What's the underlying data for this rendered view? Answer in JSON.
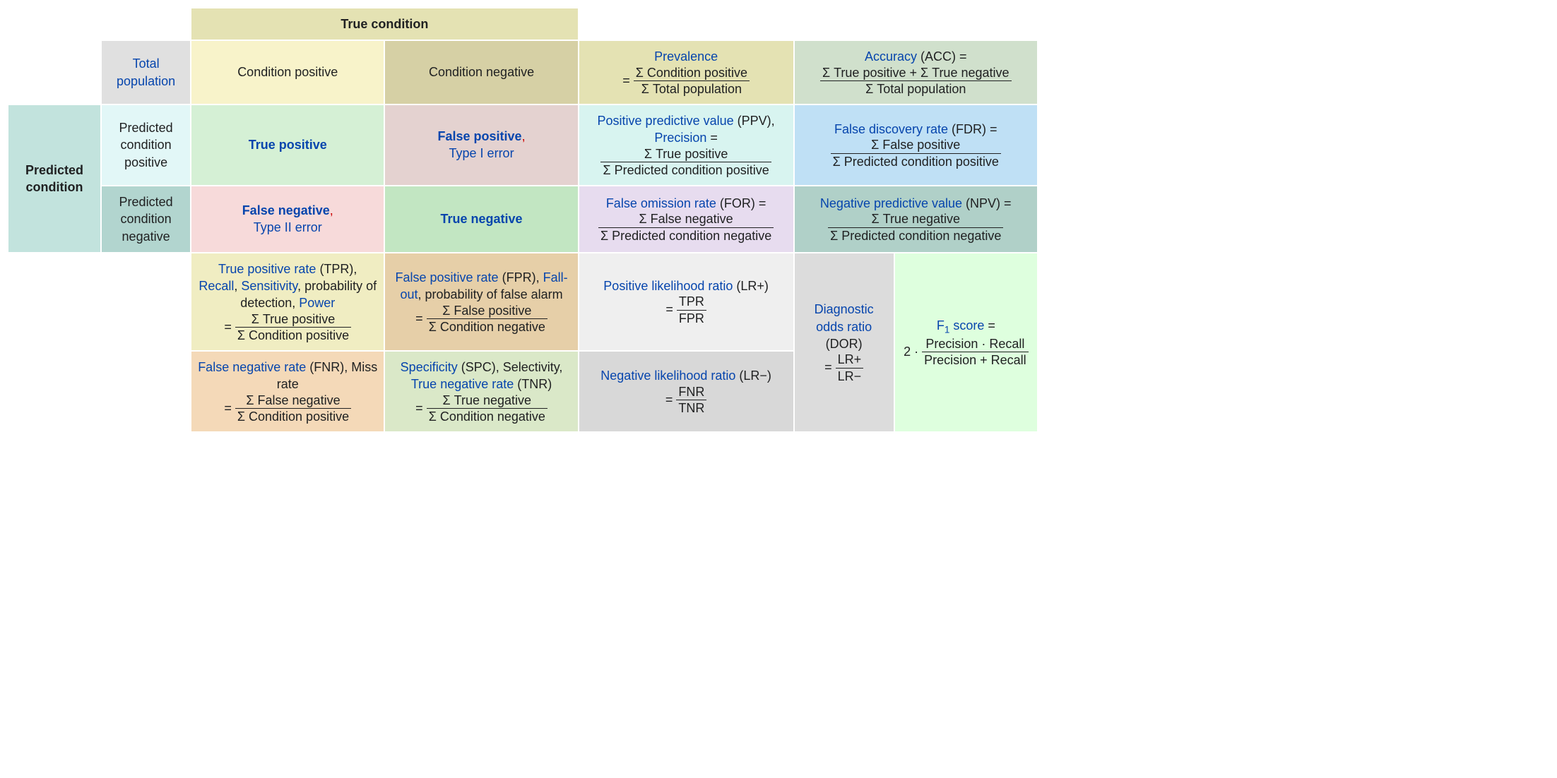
{
  "headers": {
    "true_condition": "True condition",
    "total_population": "Total population",
    "cond_pos": "Condition positive",
    "cond_neg": "Condition negative",
    "predicted_condition": "Predicted condition",
    "pred_pos": "Predicted condition positive",
    "pred_neg": "Predicted condition negative"
  },
  "cells": {
    "tp": "True positive",
    "fp_main": "False positive",
    "fp_sub": "Type I error",
    "fn_main": "False negative",
    "fn_sub": "Type II error",
    "tn": "True negative"
  },
  "prevalence": {
    "link": "Prevalence",
    "num": "Σ Condition positive",
    "den": "Σ Total population"
  },
  "accuracy": {
    "link": "Accuracy",
    "suffix": " (ACC) =",
    "num": "Σ True positive + Σ True negative",
    "den": "Σ Total population"
  },
  "ppv": {
    "link1": "Positive predictive value",
    "plain1": " (PPV), ",
    "link2": "Precision",
    "plain2": " =",
    "num": "Σ True positive",
    "den": "Σ Predicted condition positive"
  },
  "fdr": {
    "link": "False discovery rate",
    "suffix": " (FDR) =",
    "num": "Σ False positive",
    "den": "Σ Predicted condition positive"
  },
  "for": {
    "link": "False omission rate",
    "suffix": " (FOR) =",
    "num": "Σ False negative",
    "den": "Σ Predicted condition negative"
  },
  "npv": {
    "link": "Negative predictive value",
    "suffix": " (NPV) =",
    "num": "Σ True negative",
    "den": "Σ Predicted condition negative"
  },
  "tpr": {
    "link1": "True positive rate",
    "plain1": " (TPR), ",
    "link2": "Recall",
    "sep1": ", ",
    "link3": "Sensitivity",
    "plain2": ", probability of detection, ",
    "link4": "Power",
    "num": "Σ True positive",
    "den": "Σ Condition positive"
  },
  "fpr": {
    "link1": "False positive rate",
    "plain1": " (FPR), ",
    "link2": "Fall-out",
    "plain2": ", probability of false alarm",
    "num": "Σ False positive",
    "den": "Σ Condition negative"
  },
  "fnr": {
    "link": "False negative rate",
    "suffix": " (FNR), Miss rate",
    "num": "Σ False negative",
    "den": "Σ Condition positive"
  },
  "spc": {
    "link1": "Specificity",
    "plain1": " (SPC), Selectivity, ",
    "link2": "True negative rate",
    "plain2": " (TNR)",
    "num": "Σ True negative",
    "den": "Σ Condition negative"
  },
  "lrplus": {
    "link": "Positive likelihood ratio",
    "suffix": " (LR+)",
    "num": "TPR",
    "den": "FPR"
  },
  "lrminus": {
    "link": "Negative likelihood ratio",
    "suffix": " (LR−)",
    "num": "FNR",
    "den": "TNR"
  },
  "dor": {
    "link": "Diagnostic odds ratio",
    "suffix": " (DOR)",
    "num": "LR+",
    "den": "LR−"
  },
  "f1": {
    "link": "F",
    "sub": "1",
    "after": " score",
    "suffix": " =",
    "coef": "2 · ",
    "num": "Precision · Recall",
    "den": "Precision + Recall"
  },
  "colors": {
    "trueCondHeader": "#e4e2b3",
    "totalPop": "#e0e0e0",
    "condPos": "#f8f3ca",
    "condNeg": "#d6d0a5",
    "prevalence": "#e4e2b3",
    "accuracy": "#d0e0cc",
    "predCondHeader": "#c2e3dd",
    "predPos": "#e2f7f7",
    "predNeg": "#b2d5cf",
    "tp": "#d5f0d5",
    "fp": "#e4d2d0",
    "fn": "#f7dada",
    "tn": "#c2e6c2",
    "ppv": "#d8f4f0",
    "fdr": "#bfe0f5",
    "for": "#e7dcef",
    "npv": "#b0d0c8",
    "tprCell": "#f0edc2",
    "fprCell": "#e6cfa8",
    "fnrCell": "#f4d9b8",
    "spcCell": "#dae8c8",
    "lrplus": "#efefef",
    "lrminus": "#d8d8d8",
    "dor": "#dcdcdc",
    "f1cell": "#deffde",
    "linkColor": "#0645ad",
    "textColor": "#202122"
  }
}
